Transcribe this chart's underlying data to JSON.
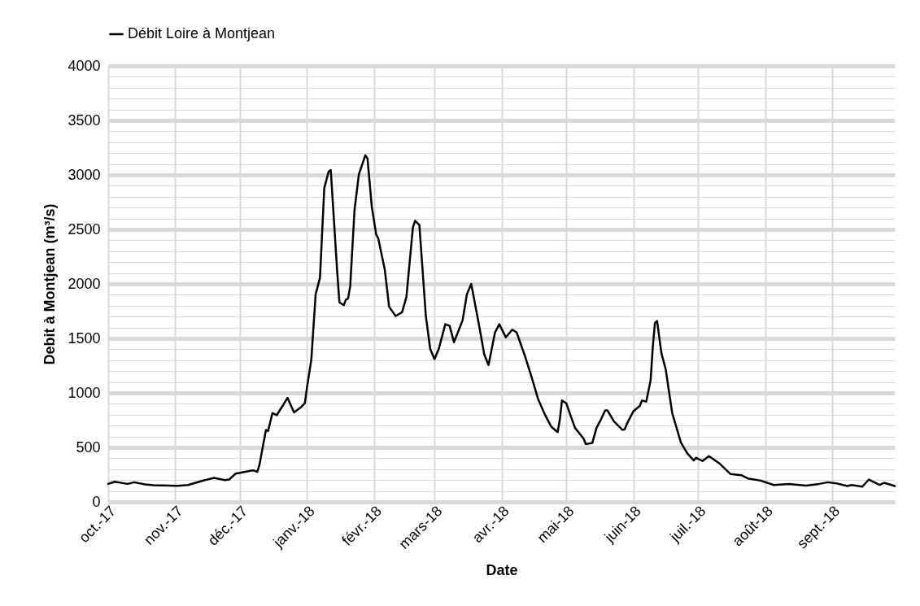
{
  "chart_data": {
    "type": "line",
    "xlabel": "Date",
    "ylabel": "Debit à Montjean (m³/s)",
    "legend": "top",
    "grid": true,
    "line_style": "solid",
    "marker": "none",
    "xlim": [
      "2017-10-01",
      "2018-09-30"
    ],
    "xticks": [
      {
        "value": "2017-10-01",
        "label": "oct.-17"
      },
      {
        "value": "2017-11-01",
        "label": "nov.-17"
      },
      {
        "value": "2017-12-01",
        "label": "déc.-17"
      },
      {
        "value": "2018-01-01",
        "label": "janv.-18"
      },
      {
        "value": "2018-02-01",
        "label": "févr.-18"
      },
      {
        "value": "2018-03-01",
        "label": "mars-18"
      },
      {
        "value": "2018-04-01",
        "label": "avr.-18"
      },
      {
        "value": "2018-05-01",
        "label": "mai-18"
      },
      {
        "value": "2018-06-01",
        "label": "juin-18"
      },
      {
        "value": "2018-07-01",
        "label": "juil.-18"
      },
      {
        "value": "2018-08-01",
        "label": "août-18"
      },
      {
        "value": "2018-09-01",
        "label": "sept.-18"
      }
    ],
    "ylim": [
      0,
      4000
    ],
    "yticks": [
      0,
      {
        "value": 100,
        "label": null
      },
      {
        "value": 200,
        "label": null
      },
      {
        "value": 300,
        "label": null
      },
      {
        "value": 400,
        "label": null
      },
      500,
      {
        "value": 600,
        "label": null
      },
      {
        "value": 700,
        "label": null
      },
      {
        "value": 800,
        "label": null
      },
      {
        "value": 900,
        "label": null
      },
      1000,
      {
        "value": 1100,
        "label": null
      },
      {
        "value": 1200,
        "label": null
      },
      {
        "value": 1300,
        "label": null
      },
      {
        "value": 1400,
        "label": null
      },
      1500,
      {
        "value": 1600,
        "label": null
      },
      {
        "value": 1700,
        "label": null
      },
      {
        "value": 1800,
        "label": null
      },
      {
        "value": 1900,
        "label": null
      },
      2000,
      {
        "value": 2100,
        "label": null
      },
      {
        "value": 2200,
        "label": null
      },
      {
        "value": 2300,
        "label": null
      },
      {
        "value": 2400,
        "label": null
      },
      2500,
      {
        "value": 2600,
        "label": null
      },
      {
        "value": 2700,
        "label": null
      },
      {
        "value": 2800,
        "label": null
      },
      {
        "value": 2900,
        "label": null
      },
      3000,
      {
        "value": 3100,
        "label": null
      },
      {
        "value": 3200,
        "label": null
      },
      {
        "value": 3300,
        "label": null
      },
      {
        "value": 3400,
        "label": null
      },
      3500,
      {
        "value": 3600,
        "label": null
      },
      {
        "value": 3700,
        "label": null
      },
      {
        "value": 3800,
        "label": null
      },
      {
        "value": 3900,
        "label": null
      },
      4000
    ],
    "x": [
      "2017-10-01",
      "2017-10-04",
      "2017-10-10",
      "2017-10-13",
      "2017-10-18",
      "2017-10-22",
      "2017-11-02",
      "2017-11-07",
      "2017-11-13",
      "2017-11-19",
      "2017-11-24",
      "2017-11-26",
      "2017-11-29",
      "2017-12-03",
      "2017-12-07",
      "2017-12-09",
      "2017-12-10",
      "2017-12-13",
      "2017-12-14",
      "2017-12-16",
      "2017-12-18",
      "2017-12-21",
      "2017-12-23",
      "2017-12-26",
      "2017-12-29",
      "2017-12-31",
      "2018-01-01",
      "2018-01-03",
      "2018-01-05",
      "2018-01-07",
      "2018-01-09",
      "2018-01-11",
      "2018-01-12",
      "2018-01-13",
      "2018-01-15",
      "2018-01-16",
      "2018-01-18",
      "2018-01-19",
      "2018-01-20",
      "2018-01-21",
      "2018-01-23",
      "2018-01-25",
      "2018-01-28",
      "2018-01-29",
      "2018-01-31",
      "2018-02-02",
      "2018-02-03",
      "2018-02-06",
      "2018-02-08",
      "2018-02-11",
      "2018-02-14",
      "2018-02-16",
      "2018-02-19",
      "2018-02-20",
      "2018-02-22",
      "2018-02-25",
      "2018-02-27",
      "2018-03-01",
      "2018-03-03",
      "2018-03-06",
      "2018-03-08",
      "2018-03-10",
      "2018-03-14",
      "2018-03-16",
      "2018-03-18",
      "2018-03-22",
      "2018-03-24",
      "2018-03-26",
      "2018-03-27",
      "2018-03-29",
      "2018-03-31",
      "2018-04-03",
      "2018-04-06",
      "2018-04-08",
      "2018-04-12",
      "2018-04-15",
      "2018-04-18",
      "2018-04-21",
      "2018-04-24",
      "2018-04-27",
      "2018-04-28",
      "2018-04-29",
      "2018-05-01",
      "2018-05-03",
      "2018-05-05",
      "2018-05-09",
      "2018-05-10",
      "2018-05-13",
      "2018-05-15",
      "2018-05-17",
      "2018-05-19",
      "2018-05-20",
      "2018-05-23",
      "2018-05-27",
      "2018-05-28",
      "2018-05-29",
      "2018-06-01",
      "2018-06-04",
      "2018-06-05",
      "2018-06-07",
      "2018-06-09",
      "2018-06-10",
      "2018-06-11",
      "2018-06-12",
      "2018-06-14",
      "2018-06-16",
      "2018-06-19",
      "2018-06-23",
      "2018-06-26",
      "2018-06-29",
      "2018-06-30",
      "2018-07-03",
      "2018-07-06",
      "2018-07-11",
      "2018-07-16",
      "2018-07-21",
      "2018-07-24",
      "2018-07-30",
      "2018-08-05",
      "2018-08-12",
      "2018-08-20",
      "2018-08-26",
      "2018-08-30",
      "2018-09-03",
      "2018-09-08",
      "2018-09-10",
      "2018-09-15",
      "2018-09-18",
      "2018-09-23",
      "2018-09-25",
      "2018-09-30"
    ],
    "series": [
      {
        "name": "Débit Loire à Montjean",
        "color": "#000000",
        "values": [
          165,
          185,
          165,
          180,
          160,
          153,
          148,
          155,
          190,
          220,
          200,
          205,
          260,
          275,
          290,
          275,
          340,
          660,
          650,
          815,
          795,
          890,
          955,
          820,
          865,
          905,
          1050,
          1305,
          1905,
          2055,
          2880,
          3030,
          3045,
          2730,
          2105,
          1830,
          1805,
          1855,
          1865,
          1980,
          2680,
          3005,
          3180,
          3150,
          2705,
          2455,
          2415,
          2130,
          1790,
          1705,
          1740,
          1880,
          2515,
          2580,
          2540,
          1705,
          1405,
          1310,
          1405,
          1630,
          1615,
          1465,
          1665,
          1905,
          2000,
          1580,
          1355,
          1255,
          1355,
          1555,
          1630,
          1510,
          1580,
          1555,
          1330,
          1140,
          940,
          805,
          690,
          640,
          755,
          930,
          905,
          790,
          680,
          580,
          530,
          540,
          680,
          755,
          840,
          840,
          740,
          660,
          665,
          715,
          830,
          880,
          930,
          920,
          1115,
          1415,
          1640,
          1660,
          1365,
          1215,
          815,
          545,
          445,
          380,
          405,
          375,
          420,
          350,
          255,
          245,
          215,
          195,
          155,
          165,
          150,
          165,
          180,
          170,
          145,
          155,
          140,
          205,
          155,
          175,
          145
        ]
      }
    ]
  }
}
